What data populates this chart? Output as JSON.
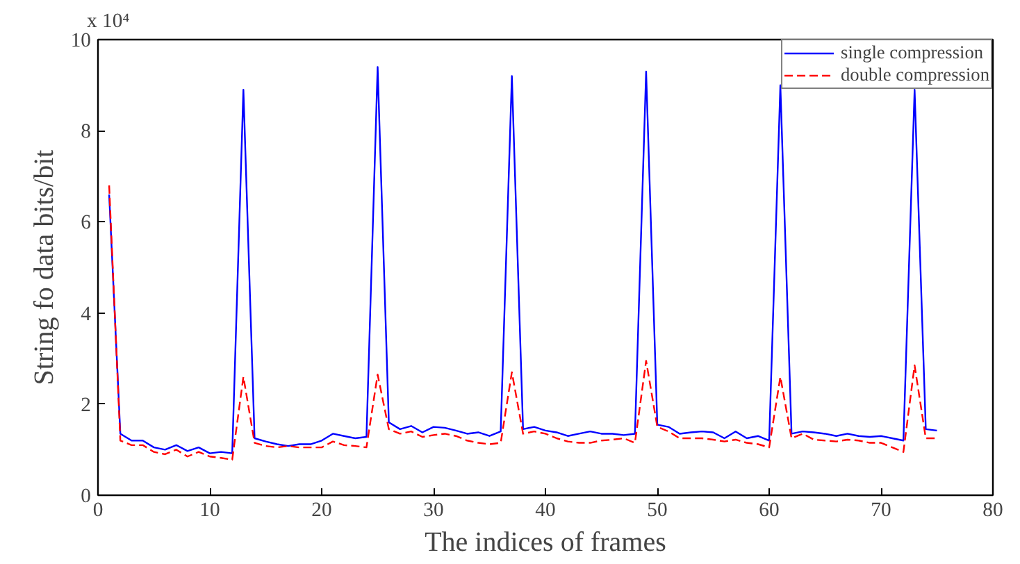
{
  "chart_data": {
    "type": "line",
    "xlabel": "The indices of frames",
    "ylabel": "String fo data bits/bit",
    "annotations": [
      "x 10⁴"
    ],
    "x": [
      1,
      2,
      3,
      4,
      5,
      6,
      7,
      8,
      9,
      10,
      11,
      12,
      13,
      14,
      15,
      16,
      17,
      18,
      19,
      20,
      21,
      22,
      23,
      24,
      25,
      26,
      27,
      28,
      29,
      30,
      31,
      32,
      33,
      34,
      35,
      36,
      37,
      38,
      39,
      40,
      41,
      42,
      43,
      44,
      45,
      46,
      47,
      48,
      49,
      50,
      51,
      52,
      53,
      54,
      55,
      56,
      57,
      58,
      59,
      60,
      61,
      62,
      63,
      64,
      65,
      66,
      67,
      68,
      69,
      70,
      71,
      72,
      73,
      74,
      75
    ],
    "series": [
      {
        "name": "single compression",
        "color": "#0000ff",
        "line_style": "solid",
        "values": [
          6.6,
          1.35,
          1.2,
          1.2,
          1.05,
          1.0,
          1.1,
          0.97,
          1.05,
          0.92,
          0.95,
          0.92,
          8.9,
          1.25,
          1.18,
          1.12,
          1.08,
          1.12,
          1.12,
          1.2,
          1.35,
          1.3,
          1.25,
          1.28,
          9.4,
          1.6,
          1.45,
          1.52,
          1.38,
          1.5,
          1.48,
          1.42,
          1.35,
          1.38,
          1.3,
          1.4,
          9.2,
          1.45,
          1.5,
          1.42,
          1.38,
          1.3,
          1.35,
          1.4,
          1.35,
          1.35,
          1.32,
          1.35,
          9.3,
          1.55,
          1.5,
          1.35,
          1.38,
          1.4,
          1.38,
          1.25,
          1.4,
          1.25,
          1.3,
          1.2,
          9.0,
          1.35,
          1.4,
          1.38,
          1.35,
          1.3,
          1.35,
          1.3,
          1.28,
          1.3,
          1.25,
          1.2,
          8.9,
          1.45,
          1.42
        ]
      },
      {
        "name": "double compression",
        "color": "#ff0000",
        "line_style": "dashed",
        "values": [
          6.8,
          1.2,
          1.1,
          1.1,
          0.95,
          0.9,
          1.0,
          0.85,
          0.95,
          0.85,
          0.82,
          0.78,
          2.6,
          1.15,
          1.08,
          1.05,
          1.08,
          1.05,
          1.05,
          1.05,
          1.18,
          1.1,
          1.08,
          1.05,
          2.65,
          1.45,
          1.35,
          1.4,
          1.28,
          1.32,
          1.35,
          1.3,
          1.2,
          1.15,
          1.12,
          1.15,
          2.7,
          1.35,
          1.4,
          1.35,
          1.25,
          1.18,
          1.15,
          1.15,
          1.2,
          1.22,
          1.25,
          1.15,
          2.95,
          1.5,
          1.4,
          1.25,
          1.25,
          1.25,
          1.22,
          1.18,
          1.22,
          1.15,
          1.12,
          1.05,
          2.6,
          1.25,
          1.35,
          1.22,
          1.2,
          1.18,
          1.22,
          1.2,
          1.15,
          1.15,
          1.05,
          0.95,
          2.85,
          1.25,
          1.25
        ]
      }
    ],
    "xlim": [
      0,
      80
    ],
    "xticks": [
      0,
      10,
      20,
      30,
      40,
      50,
      60,
      70,
      80
    ],
    "ylim": [
      0,
      10
    ],
    "yticks": [
      0,
      2,
      4,
      6,
      8,
      10
    ],
    "grid": false,
    "legend": "top right",
    "marker": "none"
  }
}
